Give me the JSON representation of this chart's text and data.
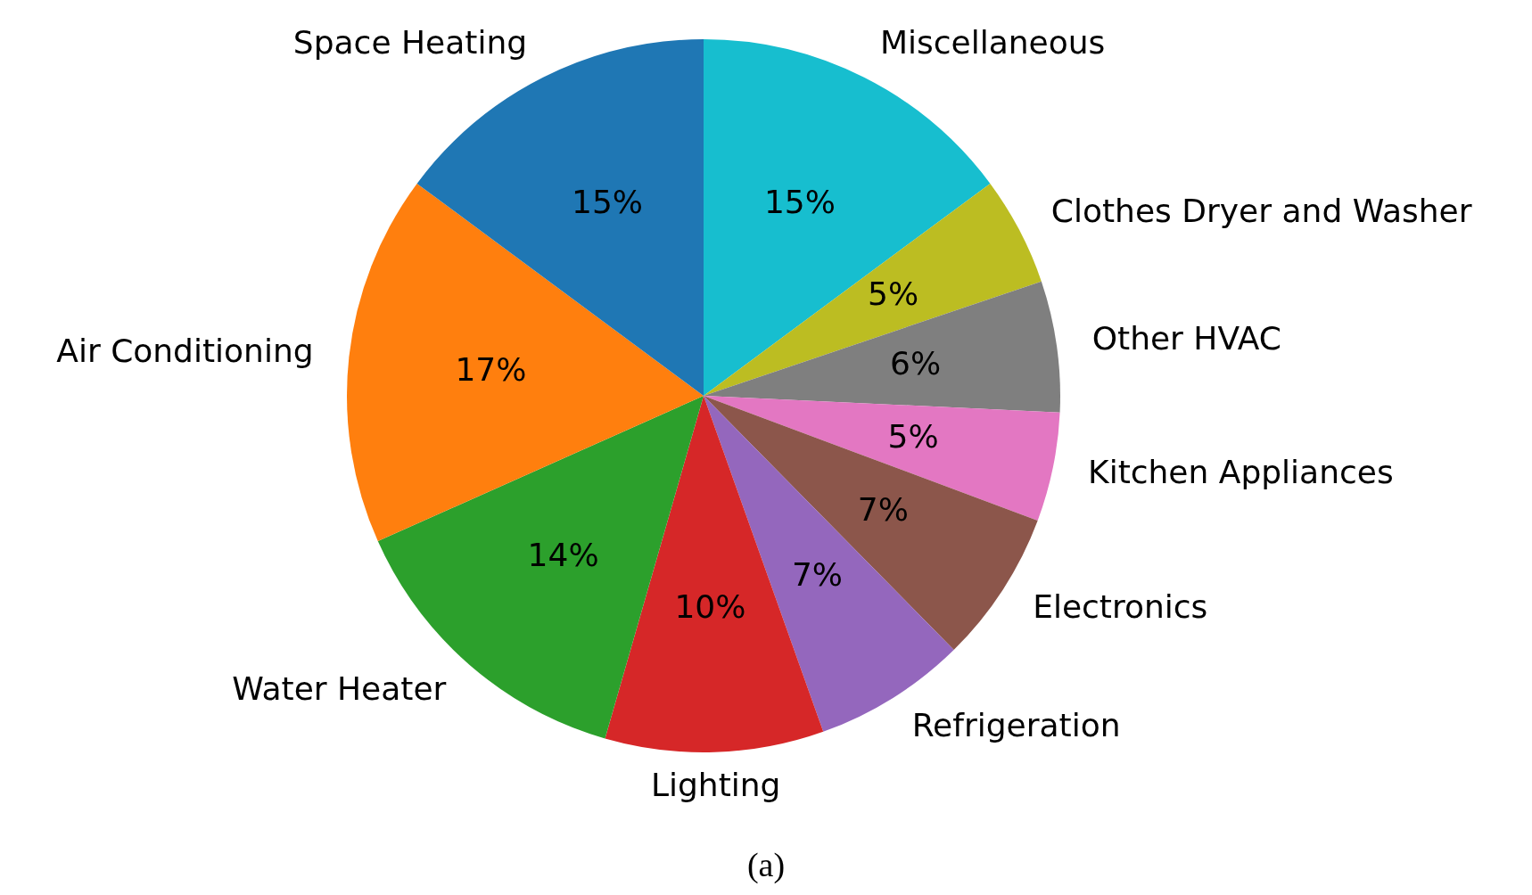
{
  "chart_data": {
    "type": "pie",
    "categories": [
      "Miscellaneous",
      "Clothes Dryer and Washer",
      "Other HVAC",
      "Kitchen Appliances",
      "Electronics",
      "Refrigeration",
      "Lighting",
      "Water Heater",
      "Air Conditioning",
      "Space Heating"
    ],
    "values": [
      15,
      5,
      6,
      5,
      7,
      7,
      10,
      14,
      17,
      15
    ],
    "value_labels": [
      "15%",
      "5%",
      "6%",
      "5%",
      "7%",
      "7%",
      "10%",
      "14%",
      "17%",
      "15%"
    ],
    "colors": [
      "#17becf",
      "#bcbd22",
      "#7f7f7f",
      "#e377c2",
      "#8c564b",
      "#9467bd",
      "#d62728",
      "#2ca02c",
      "#ff7f0e",
      "#1f77b4"
    ],
    "legend": false,
    "annotations": [
      "(a)"
    ]
  }
}
